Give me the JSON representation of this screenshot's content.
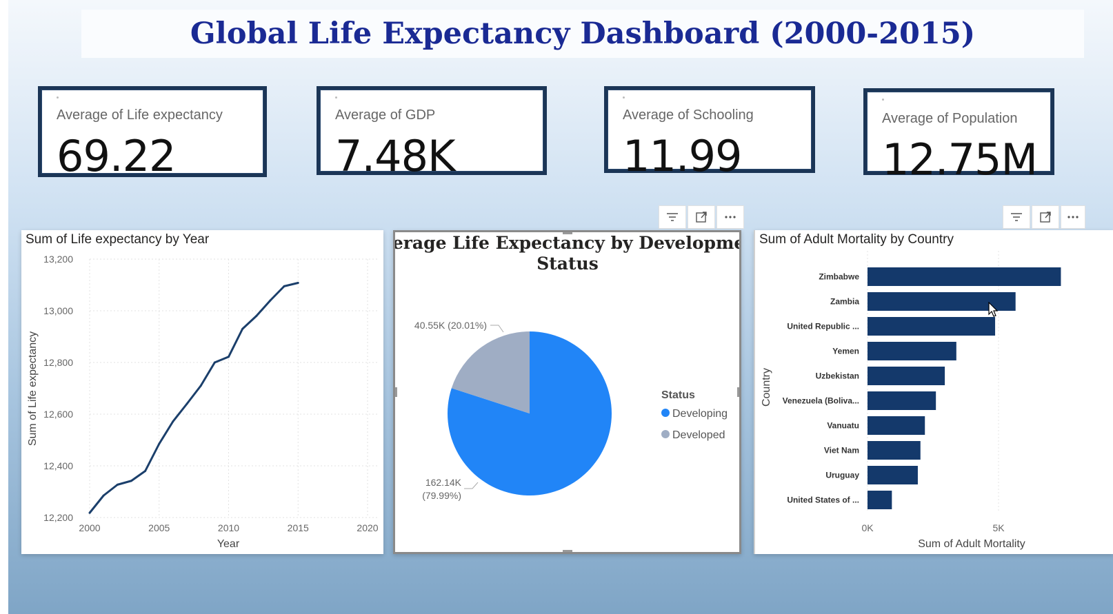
{
  "dashboard": {
    "title": "Global Life Expectancy Dashboard (2000-2015)"
  },
  "cards": [
    {
      "label": "Average of Life expectancy",
      "value": "69.22"
    },
    {
      "label": "Average of GDP",
      "value": "7.48K"
    },
    {
      "label": "Average of Schooling",
      "value": "11.99"
    },
    {
      "label": "Average of Population",
      "value": "12.75M"
    }
  ],
  "toolbar_icons": [
    "filter-icon",
    "focus-mode-icon",
    "more-options-icon"
  ],
  "chart_data": [
    {
      "type": "line",
      "title": "Sum of Life expectancy by Year",
      "xlabel": "Year",
      "ylabel": "Sum of Life expectancy",
      "xlim": [
        2000,
        2020
      ],
      "ylim": [
        12200,
        13200
      ],
      "x_ticks": [
        "2000",
        "2005",
        "2010",
        "2015",
        "2020"
      ],
      "y_ticks": [
        "12,200",
        "12,400",
        "12,600",
        "12,800",
        "13,000",
        "13,200"
      ],
      "grid": true,
      "color": "#1b3f6b",
      "x": [
        2000,
        2001,
        2002,
        2003,
        2004,
        2005,
        2006,
        2007,
        2008,
        2009,
        2010,
        2011,
        2012,
        2013,
        2014,
        2015
      ],
      "y": [
        12218,
        12285,
        12327,
        12342,
        12380,
        12485,
        12572,
        12640,
        12710,
        12800,
        12822,
        12930,
        12980,
        13040,
        13095,
        13108
      ]
    },
    {
      "type": "pie",
      "title": "Average Life Expectancy by Development Status",
      "legend_title": "Status",
      "legend_position": "right",
      "slices": [
        {
          "name": "Developing",
          "value": 162.14,
          "label": "162.14K",
          "percent_label": "(79.99%)",
          "color": "#2185f7"
        },
        {
          "name": "Developed",
          "value": 40.55,
          "label": "40.55K (20.01%)",
          "color": "#9fadc4"
        }
      ]
    },
    {
      "type": "bar",
      "orientation": "horizontal",
      "title": "Sum of Adult Mortality by Country",
      "xlabel": "Sum of Adult Mortality",
      "ylabel": "Country",
      "x_ticks": [
        "0K",
        "5K"
      ],
      "xlim": [
        0,
        8200
      ],
      "grid": true,
      "color": "#14396b",
      "categories": [
        "Zimbabwe",
        "Zambia",
        "United Republic ...",
        "Yemen",
        "Uzbekistan",
        "Venezuela (Boliva...",
        "Vanuatu",
        "Viet Nam",
        "Uruguay",
        "United States of ..."
      ],
      "values": [
        7380,
        5650,
        4870,
        3390,
        2950,
        2610,
        2190,
        2020,
        1920,
        930
      ]
    }
  ]
}
